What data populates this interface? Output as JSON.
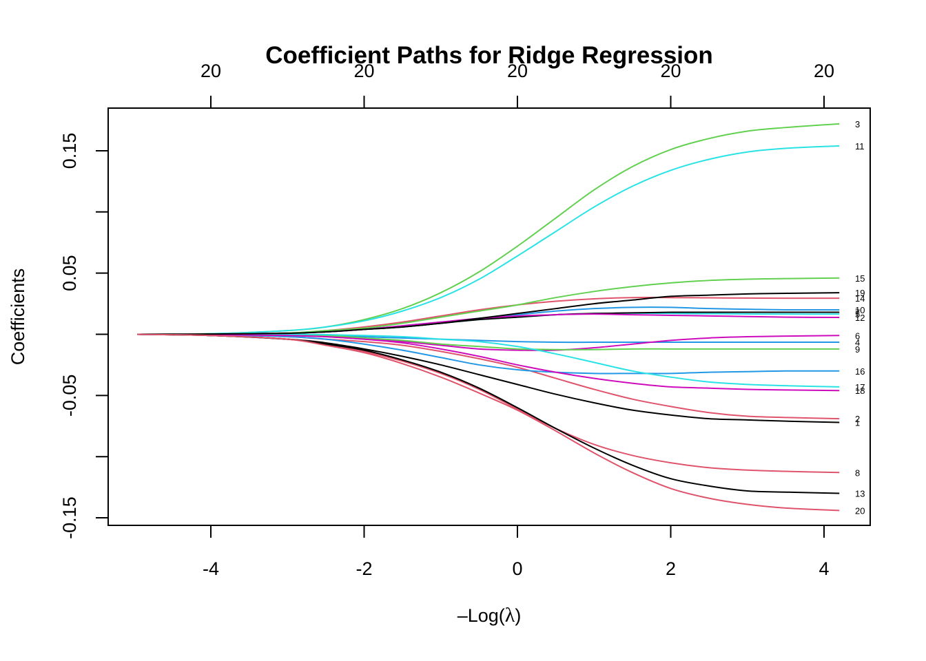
{
  "chart_data": {
    "type": "line",
    "title": "Coefficient Paths for Ridge Regression",
    "xlabel": "-Log(λ)",
    "ylabel": "Coefficients",
    "xlim": [
      -5.3,
      4.6
    ],
    "ylim": [
      -0.157,
      0.185
    ],
    "x_ticks": [
      -4,
      -2,
      0,
      2,
      4
    ],
    "x_tick_labels": [
      "-4",
      "-2",
      "0",
      "2",
      "4"
    ],
    "y_ticks": [
      -0.15,
      -0.1,
      -0.05,
      0.0,
      0.05,
      0.1,
      0.15
    ],
    "y_tick_labels": [
      "-0.15",
      "",
      "-0.05",
      "",
      "0.05",
      "",
      "0.15"
    ],
    "top_axis": {
      "ticks": [
        -4,
        -2,
        0,
        2,
        4
      ],
      "labels": [
        "20",
        "20",
        "20",
        "20",
        "20"
      ],
      "meaning": "number of nonzero coefficients"
    },
    "grid": false,
    "legend": "none (variable index labels at right end of each path)",
    "x": [
      -4.96,
      -4,
      -3,
      -2.5,
      -2,
      -1.5,
      -1,
      -0.5,
      0,
      0.5,
      1,
      1.5,
      2,
      2.5,
      3,
      3.5,
      4.2
    ],
    "series": [
      {
        "name": "1",
        "color": "#000000",
        "values": [
          0,
          -0.001,
          -0.004,
          -0.007,
          -0.012,
          -0.018,
          -0.025,
          -0.033,
          -0.041,
          -0.049,
          -0.056,
          -0.062,
          -0.066,
          -0.069,
          -0.07,
          -0.071,
          -0.072
        ]
      },
      {
        "name": "2",
        "color": "#DF536B",
        "values": [
          0,
          -0.0005,
          -0.002,
          -0.004,
          -0.006,
          -0.009,
          -0.014,
          -0.02,
          -0.027,
          -0.036,
          -0.045,
          -0.053,
          -0.059,
          -0.064,
          -0.067,
          -0.068,
          -0.069
        ]
      },
      {
        "name": "3",
        "color": "#61D04F",
        "values": [
          0,
          0.0005,
          0.003,
          0.006,
          0.012,
          0.021,
          0.034,
          0.051,
          0.072,
          0.095,
          0.118,
          0.137,
          0.151,
          0.16,
          0.166,
          0.169,
          0.172
        ]
      },
      {
        "name": "4",
        "color": "#2297E6",
        "values": [
          0,
          0,
          -0.0005,
          -0.001,
          -0.002,
          -0.003,
          -0.004,
          -0.005,
          -0.006,
          -0.0065,
          -0.0065,
          -0.0065,
          -0.0065,
          -0.0065,
          -0.0065,
          -0.0065,
          -0.0065
        ]
      },
      {
        "name": "5",
        "color": "#28E2E5",
        "values": [
          0,
          0.0002,
          0.001,
          0.002,
          0.004,
          0.006,
          0.009,
          0.012,
          0.014,
          0.016,
          0.017,
          0.0172,
          0.017,
          0.0168,
          0.0166,
          0.0165,
          0.0165
        ]
      },
      {
        "name": "6",
        "color": "#CD0BBC",
        "values": [
          0,
          -0.0003,
          -0.001,
          -0.002,
          -0.004,
          -0.006,
          -0.009,
          -0.012,
          -0.013,
          -0.013,
          -0.011,
          -0.008,
          -0.005,
          -0.003,
          -0.002,
          -0.0015,
          -0.001
        ]
      },
      {
        "name": "7",
        "color": "#000000",
        "values": [
          0,
          0.0002,
          0.001,
          0.002,
          0.004,
          0.006,
          0.009,
          0.012,
          0.014,
          0.016,
          0.017,
          0.0175,
          0.018,
          0.018,
          0.018,
          0.018,
          0.018
        ]
      },
      {
        "name": "8",
        "color": "#DF536B",
        "values": [
          0,
          -0.001,
          -0.004,
          -0.008,
          -0.014,
          -0.022,
          -0.032,
          -0.045,
          -0.061,
          -0.077,
          -0.09,
          -0.099,
          -0.105,
          -0.109,
          -0.111,
          -0.112,
          -0.113
        ]
      },
      {
        "name": "9",
        "color": "#61D04F",
        "values": [
          0,
          0,
          -0.0005,
          -0.001,
          -0.003,
          -0.005,
          -0.008,
          -0.01,
          -0.012,
          -0.0125,
          -0.0125,
          -0.012,
          -0.012,
          -0.012,
          -0.012,
          -0.012,
          -0.012
        ]
      },
      {
        "name": "10",
        "color": "#2297E6",
        "values": [
          0,
          0.0002,
          0.001,
          0.002,
          0.004,
          0.007,
          0.01,
          0.013,
          0.016,
          0.019,
          0.021,
          0.022,
          0.022,
          0.021,
          0.0205,
          0.02,
          0.02
        ]
      },
      {
        "name": "11",
        "color": "#28E2E5",
        "values": [
          0,
          0.0005,
          0.003,
          0.006,
          0.011,
          0.019,
          0.03,
          0.045,
          0.064,
          0.084,
          0.104,
          0.121,
          0.134,
          0.143,
          0.149,
          0.152,
          0.154
        ]
      },
      {
        "name": "12",
        "color": "#CD0BBC",
        "values": [
          0,
          0.0002,
          0.001,
          0.002,
          0.004,
          0.007,
          0.01,
          0.013,
          0.015,
          0.016,
          0.0165,
          0.016,
          0.0155,
          0.015,
          0.0145,
          0.014,
          0.0138
        ]
      },
      {
        "name": "13",
        "color": "#000000",
        "values": [
          0,
          -0.001,
          -0.004,
          -0.008,
          -0.013,
          -0.021,
          -0.031,
          -0.044,
          -0.06,
          -0.077,
          -0.093,
          -0.107,
          -0.118,
          -0.124,
          -0.128,
          -0.129,
          -0.13
        ]
      },
      {
        "name": "14",
        "color": "#DF536B",
        "values": [
          0,
          0.0002,
          0.001,
          0.003,
          0.006,
          0.01,
          0.015,
          0.02,
          0.024,
          0.027,
          0.029,
          0.03,
          0.03,
          0.0298,
          0.0296,
          0.0295,
          0.0295
        ]
      },
      {
        "name": "15",
        "color": "#61D04F",
        "values": [
          0,
          0.0002,
          0.001,
          0.003,
          0.005,
          0.009,
          0.014,
          0.019,
          0.024,
          0.03,
          0.035,
          0.039,
          0.042,
          0.044,
          0.045,
          0.0455,
          0.046
        ]
      },
      {
        "name": "16",
        "color": "#2297E6",
        "values": [
          0,
          -0.0005,
          -0.002,
          -0.004,
          -0.008,
          -0.013,
          -0.019,
          -0.025,
          -0.029,
          -0.031,
          -0.032,
          -0.032,
          -0.032,
          -0.031,
          -0.0305,
          -0.03,
          -0.03
        ]
      },
      {
        "name": "17",
        "color": "#28E2E5",
        "values": [
          0,
          0,
          0,
          -0.0003,
          -0.001,
          -0.002,
          -0.004,
          -0.006,
          -0.01,
          -0.016,
          -0.023,
          -0.03,
          -0.035,
          -0.039,
          -0.041,
          -0.042,
          -0.043
        ]
      },
      {
        "name": "18",
        "color": "#CD0BBC",
        "values": [
          0,
          -0.0003,
          -0.001,
          -0.002,
          -0.004,
          -0.007,
          -0.012,
          -0.018,
          -0.025,
          -0.031,
          -0.036,
          -0.04,
          -0.043,
          -0.044,
          -0.045,
          -0.0455,
          -0.046
        ]
      },
      {
        "name": "19",
        "color": "#000000",
        "values": [
          0,
          0.0002,
          0.0008,
          0.002,
          0.004,
          0.006,
          0.009,
          0.013,
          0.017,
          0.021,
          0.025,
          0.028,
          0.031,
          0.032,
          0.033,
          0.0335,
          0.034
        ]
      },
      {
        "name": "20",
        "color": "#DF536B",
        "values": [
          0,
          -0.001,
          -0.004,
          -0.009,
          -0.015,
          -0.024,
          -0.035,
          -0.048,
          -0.062,
          -0.079,
          -0.097,
          -0.113,
          -0.126,
          -0.134,
          -0.139,
          -0.142,
          -0.144
        ]
      }
    ]
  },
  "labels": {
    "title": "Coefficient Paths for Ridge Regression",
    "xlabel_prefix": "–",
    "xlabel_log": "Log(",
    "xlabel_lambda": "λ",
    "xlabel_close": ")",
    "ylabel": "Coefficients"
  }
}
